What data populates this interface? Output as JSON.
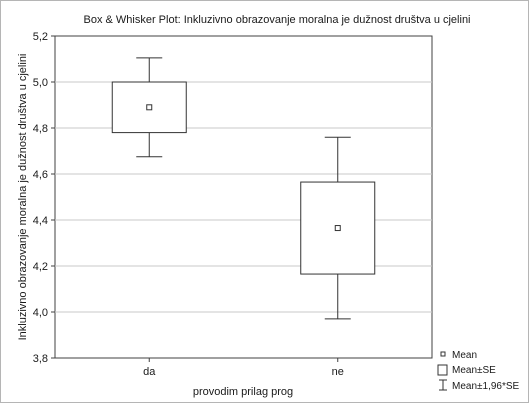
{
  "chart_data": {
    "type": "box",
    "title": "Box & Whisker Plot: Inkluzivno obrazovanje moralna je dužnost društva u cjelini",
    "xlabel": "provodim prilag prog",
    "ylabel": "Inkluzivno obrazovanje moralna je dužnost društva u cjelini",
    "categories": [
      "da",
      "ne"
    ],
    "mean": [
      4.89,
      4.365
    ],
    "mean_minus_se": [
      4.78,
      4.165
    ],
    "mean_plus_se": [
      5.0,
      4.565
    ],
    "mean_minus_1_96se": [
      4.675,
      3.97
    ],
    "mean_plus_1_96se": [
      5.105,
      4.76
    ],
    "ylim": [
      3.8,
      5.2
    ],
    "yticks": [
      "3,8",
      "4,0",
      "4,2",
      "4,4",
      "4,6",
      "4,8",
      "5,0",
      "5,2"
    ],
    "grid": true,
    "legend_position": "bottom-right",
    "legend": [
      "Mean",
      "Mean±SE",
      "Mean±1,96*SE"
    ]
  }
}
